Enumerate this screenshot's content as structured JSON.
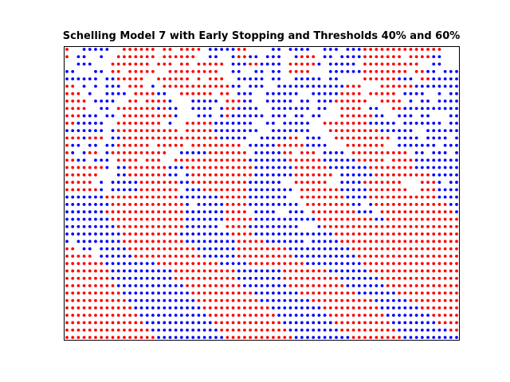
{
  "chart_data": {
    "type": "scatter",
    "title": "Schelling Model 7 with Early Stopping and Thresholds 40% and 60%",
    "xlabel": "",
    "ylabel": "",
    "grid": false,
    "axes_visible": false,
    "xlim": [
      0,
      49
    ],
    "ylim": [
      0,
      49
    ],
    "colors": {
      "group_a": "#ff0000",
      "group_b": "#0000ff"
    },
    "marker": "circle",
    "grid_rows": [
      "R..BBBBB..RRRRRR.RR.RRRR.BBBBBRR....BB.BBBB..BBB.BBBRRRRRRRRRRRRRR...",
      "R.BB..B..RRRRRRR.RRRRRR..BB..BRRBB.BBB..BRRR.BB.BBBBRRRRRRR.RRRRBB...",
      "..BBB...RRRRRRR.RRR.RR.RRRRR.BBBRRBBBB.RRRRRB.BBBBB.RRRRRRRRRR..BB...",
      "BB...BB.RR.RRRRR..RRRRRRRRR..BB..BB.BB.RRRR...BBBBBBRRRRRRRR.RRBB.BBB",
      "BBBBBB.BBRRRRR..RRRRRR.R.RRR..BBBBB.BB..BBBBB.BB....RRRRRRBBB.RRBBBBB",
      "RR.B.B.BBB.RRR.B.RRRRRRRRRRRRBB.BBB..BBBBBBBBBBBBRRR...RRRRRRBBBBBBBB",
      "RRR.B..BBBB.RRRRBB..RRRRRR.RR.BBB..BBBBBB..BBBBBRRRR.RRRRR.BBBB..B.BB",
      "RRRR.BBBB..RR.RRRRB...BBBBB.RRRBB..BBBBB.BB.BBBRRRRRR..RRRR.B.BB.BBBB",
      "RRRR..BB.RRRRRRRBRBB..BBBB.BRRBBBB..BBBBBBB.BB..RRRR.BB..RRBBBBBBBBBB",
      "RRRBBB.BB.RRRRRRRRRB...BBB.BRBBBBBB.BBB.BB.BB...RRRRRRBB..BBB.BB...BB",
      "RRBBBBB..RRRRRRRR.B..RRRRRBBBBBBB..BB.BBBBB..RRRRRRRRBBBBB.BBBBBBB.BB",
      "BBBBBBB.BRRRRRRRRRRR.RRRRRBBBBBBBB..BBBBBBB...RRRRRRRRRBBBBBB..BBBBBB",
      "RRRBRRR.BBRRRRRRRRRRRRRRRRRBBBBB..BBBBBRR.BBB..RRRRRRRRRR.BBBB.BBBB.B",
      "RBB.BB.BBRRRRRR.RRRRR.RRRRRRRRR.BBBBBRRRRRBBBB...RRRRRRR..BBBBBBB.BBB",
      "RB.BRR.BRRRRRRRRRR..BBBBBRRRRRRR.BBBBBRR.RRR.BBBB.RRRRRRRRRR.BB.BBB.B",
      "RRBB.BBB.RRRR.RRR..RRRRRRRRRRRRRBBBBBBBRRRRRRBBBBBBRRRRR.RRRRBBBBBBBB",
      "RRRRRRRB.BBRRRRRRRBBBRRRRRRRRRRRRBBBBBBBRRRRRRBBBBBBBRRRRRRRRBBBBBBBB",
      "RRRRRR...BBRRRRRRRBB.BRRRRRRRRRRRBBBBBBBRRRRRRR.BBBBBBRRRRRRRRRRBBBBB",
      "RRRRR.B.BBBBBRRRRRRRBBRRRRRRRRRRBBBBBB..RRRRRR..BBBBRRRRRRR...RRRB.BB",
      "RRRRRRB.BBBBBRRRRRRR.BBBRRRRRRRRBBBBBBBB.RRRRRRRBBBBBRRRRRRR..RRRBBBB",
      "BBBBBBBRRRRRRRRRRRRRBBBBBBBRRRRRBBBBBBB..RRRRRRRRBBBBRRRRRRRRRRRRBBBB",
      "BBBBBBBBRRRRRRRRRRRRRB.BBBBBRRRRBBBBBBBBB.RRRRRRRRBB.BRRRRRRRRRRRRRBB",
      "BBBBBBBRRRRRRRRRRRRRRBBBBBBBRRRR.BBBB..BBB.RRRRRRRRBBB.RRRRRRRRRRRRRB",
      "BBBBBBBBRRRRRRRRRRRRRBBBBBBBRRRRRBBBBBBBBBBBRRRRRRRRRRBBRRRRRRRRRRRRR",
      "BBBBBBBBBRRRRRRRRRRRRBBBBBB.RRRRBBBBBBBBB...BRRRRRRRRRRRRRRRRRRRRRRRR",
      "BBBBBBBBBBRRRRRRRRRRBBBBBBBBBRRRRBBBBBBBBBBBBBBRRRRRRRRRRRRRRRRRRRRRR",
      "B.BBBBBBBBRRRRRRRRRRRBBBBBBBBBRRRRRBBBBBBB.BBBBBRRRRRRRRRRRRRRRRRRRRR",
      "RR.BB.BBBBBRRRRRRRRRRRRBBBBBBBRRRRRRRRRBBBBBBBBBBBRRRRRRRRRRRRRRRRRRR",
      "RRRRR.BBBBBBRRRRRRRRRRRRBBBBBBRRRRRRRRRRBBBBBBBBBBBRRRRRRRRRRRRRRRRRR",
      "RRRRRRRBBBBBBBBBRRRRRRRRRRRBBBBBRRRRRRRRRRBBBBBBBBBBRRRRRRRRRRRRRRRRR",
      "RRRRRRRRBBBBBBBBBBBRRRRRRRRRRRBBBBBBBBRRRRRRRRBBBBBBBRRRRRRRRRRRRRRRR",
      "RRRRRRRRBBBBBBBBBBBRRRRRRRRRRRBBBBBBBBRRRRRRRRRRBBBBBBBRRRRRRRRRRRRRR",
      "RRRRRRRRRBBBBBBBBBBBBRRRRRRRRRRBBBBBBBBRRRRRRRRRRBBBBBBBRRRRRRRRRRRRR",
      "RRRRRRRRRRBBBBBBBBBBBBRRRRRRRRRRRBBBBBBBBRRRRRRRRRRBBBBBBBRRRRRRRRRRR",
      "RRRRRRRRRRRBBBBBBBBBBBBRRRRRRRRRRRBBBBBBBBBRRRRRRRRRRRBBBBBBRRRRRRRRR",
      "RRRRRRRRRRRRBBBBBBBBBBBBRRRRRRRRRRRRBBBBBBBBBRRRRRRRRRRBBBBBBBRRRRRRR",
      "RRRRRRRRRRRRRBBBBBBBBBBBBRRRRRRRRRRRRBBBBBBBBBRRRRRRRRRRBBBBBBBBRRRRR",
      "RRRRRRRRRRRRRRBBBBBBBBBBBBRRRRRRRRRRRRBBBBBBBBBRRRRRRRRRRBBBBBBBBRRRR",
      "RRRRRRRRRRRRRRRBBBBBBBBBBBBRRRRRRRRRRRRBBBBBBBBBRRRRRRRRRRBBBBBBBBBRR",
      "RRRRRRRRRRRRRRRRBBBBBBBBBBBBRRRRRRRRRRRRBBBBBBBBBBRRRRRRRRRBBBBBBBBBB"
    ]
  }
}
